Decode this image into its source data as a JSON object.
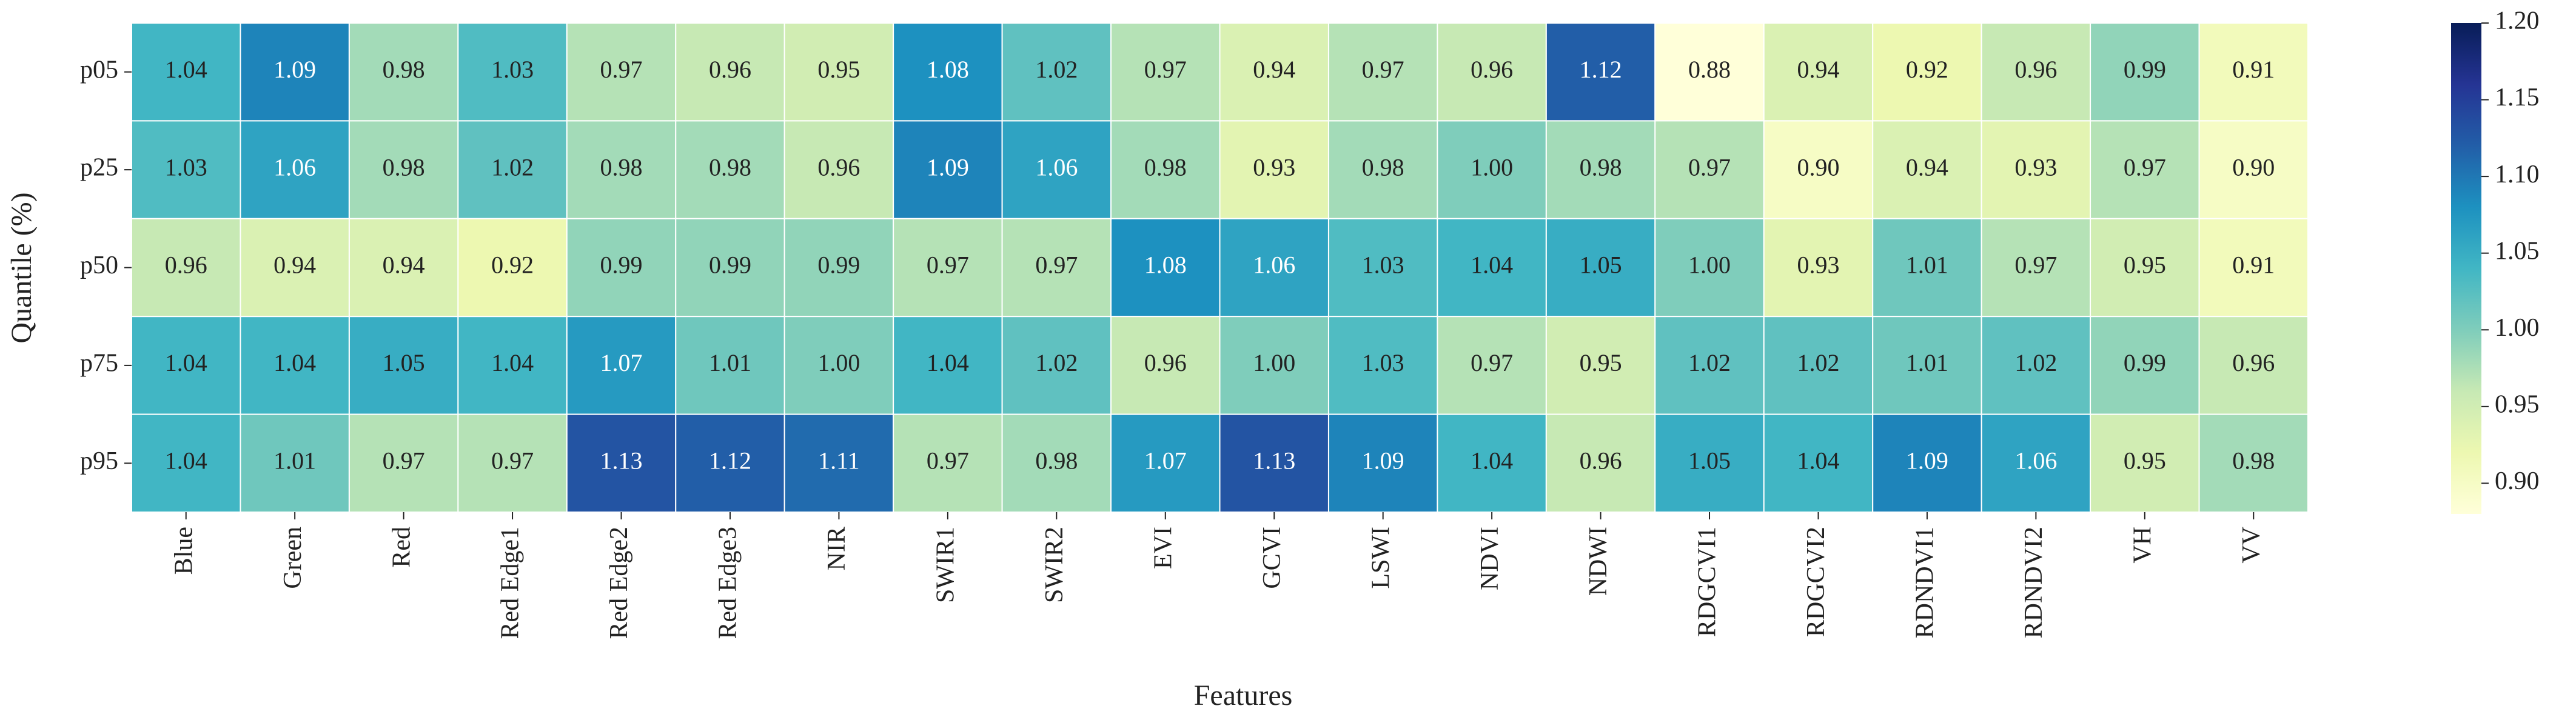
{
  "chart_data": {
    "type": "heatmap",
    "x_label": "Features",
    "y_label": "Quantile (%)",
    "x_categories": [
      "Blue",
      "Green",
      "Red",
      "Red Edge1",
      "Red Edge2",
      "Red Edge3",
      "NIR",
      "SWIR1",
      "SWIR2",
      "EVI",
      "GCVI",
      "LSWI",
      "NDVI",
      "NDWI",
      "RDGCVI1",
      "RDGCVI2",
      "RDNDVI1",
      "RDNDVI2",
      "VH",
      "VV"
    ],
    "y_categories": [
      "p05",
      "p25",
      "p50",
      "p75",
      "p95"
    ],
    "values": [
      [
        1.04,
        1.09,
        0.98,
        1.03,
        0.97,
        0.96,
        0.95,
        1.08,
        1.02,
        0.97,
        0.94,
        0.97,
        0.96,
        1.12,
        0.88,
        0.94,
        0.92,
        0.96,
        0.99,
        0.91
      ],
      [
        1.03,
        1.06,
        0.98,
        1.02,
        0.98,
        0.98,
        0.96,
        1.09,
        1.06,
        0.98,
        0.93,
        0.98,
        1.0,
        0.98,
        0.97,
        0.9,
        0.94,
        0.93,
        0.97,
        0.9
      ],
      [
        0.96,
        0.94,
        0.94,
        0.92,
        0.99,
        0.99,
        0.99,
        0.97,
        0.97,
        1.08,
        1.06,
        1.03,
        1.04,
        1.05,
        1.0,
        0.93,
        1.01,
        0.97,
        0.95,
        0.91
      ],
      [
        1.04,
        1.04,
        1.05,
        1.04,
        1.07,
        1.01,
        1.0,
        1.04,
        1.02,
        0.96,
        1.0,
        1.03,
        0.97,
        0.95,
        1.02,
        1.02,
        1.01,
        1.02,
        0.99,
        0.96
      ],
      [
        1.04,
        1.01,
        0.97,
        0.97,
        1.13,
        1.12,
        1.11,
        0.97,
        0.98,
        1.07,
        1.13,
        1.09,
        1.04,
        0.96,
        1.05,
        1.04,
        1.09,
        1.06,
        0.95,
        0.98
      ]
    ],
    "value_labels": [
      [
        "1.04",
        "1.09",
        "0.98",
        "1.03",
        "0.97",
        "0.96",
        "0.95",
        "1.08",
        "1.02",
        "0.97",
        "0.94",
        "0.97",
        "0.96",
        "1.12",
        "0.88",
        "0.94",
        "0.92",
        "0.96",
        "0.99",
        "0.91"
      ],
      [
        "1.03",
        "1.06",
        "0.98",
        "1.02",
        "0.98",
        "0.98",
        "0.96",
        "1.09",
        "1.06",
        "0.98",
        "0.93",
        "0.98",
        "1.00",
        "0.98",
        "0.97",
        "0.90",
        "0.94",
        "0.93",
        "0.97",
        "0.90"
      ],
      [
        "0.96",
        "0.94",
        "0.94",
        "0.92",
        "0.99",
        "0.99",
        "0.99",
        "0.97",
        "0.97",
        "1.08",
        "1.06",
        "1.03",
        "1.04",
        "1.05",
        "1.00",
        "0.93",
        "1.01",
        "0.97",
        "0.95",
        "0.91"
      ],
      [
        "1.04",
        "1.04",
        "1.05",
        "1.04",
        "1.07",
        "1.01",
        "1.00",
        "1.04",
        "1.02",
        "0.96",
        "1.00",
        "1.03",
        "0.97",
        "0.95",
        "1.02",
        "1.02",
        "1.01",
        "1.02",
        "0.99",
        "0.96"
      ],
      [
        "1.04",
        "1.01",
        "0.97",
        "0.97",
        "1.13",
        "1.12",
        "1.11",
        "0.97",
        "0.98",
        "1.07",
        "1.13",
        "1.09",
        "1.04",
        "0.96",
        "1.05",
        "1.04",
        "1.09",
        "1.06",
        "0.95",
        "0.98"
      ]
    ],
    "clim": [
      0.88,
      1.2
    ],
    "cticks": [
      {
        "value": 0.9,
        "label": "0.90"
      },
      0.95,
      {
        "value": 1.0,
        "label": "1.00"
      },
      1.05,
      {
        "value": 1.1,
        "label": "1.10"
      },
      1.15,
      {
        "value": 1.2,
        "label": "1.20"
      }
    ],
    "colormap": [
      "#ffffd9",
      "#edf8b1",
      "#c7e9b4",
      "#7fcdbb",
      "#41b6c4",
      "#1d91c0",
      "#225ea8",
      "#253494",
      "#081d58"
    ]
  }
}
